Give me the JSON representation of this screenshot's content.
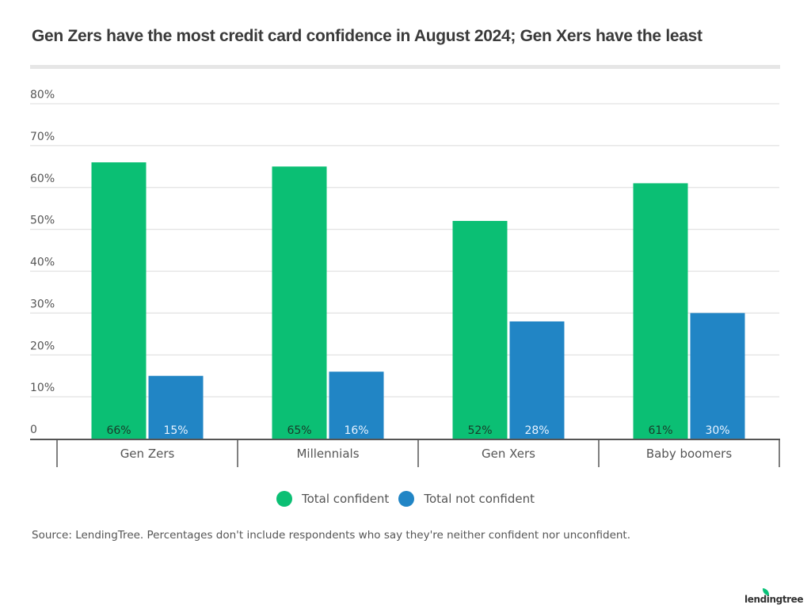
{
  "chart_data": {
    "type": "bar",
    "title": "Gen Zers have the most credit card confidence in August 2024; Gen Xers have the least",
    "xlabel": "",
    "ylabel": "",
    "ylim": [
      0,
      80
    ],
    "yticks": [
      0,
      10,
      20,
      30,
      40,
      50,
      60,
      70,
      80
    ],
    "ytick_labels": [
      "0",
      "10%",
      "20%",
      "30%",
      "40%",
      "50%",
      "60%",
      "70%",
      "80%"
    ],
    "grid": true,
    "categories": [
      "Gen Zers",
      "Millennials",
      "Gen Xers",
      "Baby boomers"
    ],
    "series": [
      {
        "name": "Total confident",
        "color": "#0bbf74",
        "label_color": "#1a3a2a",
        "values": [
          66,
          65,
          52,
          61
        ],
        "labels": [
          "66%",
          "65%",
          "52%",
          "61%"
        ]
      },
      {
        "name": "Total not confident",
        "color": "#2185c5",
        "label_color": "#e8f3ff",
        "values": [
          15,
          16,
          28,
          30
        ],
        "labels": [
          "15%",
          "16%",
          "28%",
          "30%"
        ]
      }
    ],
    "legend_position": "bottom-center",
    "source": "Source: LendingTree. Percentages don't include respondents who say they're neither confident nor unconfident."
  },
  "branding": {
    "logo_text": "lendingtree",
    "accent": "#08c177"
  }
}
